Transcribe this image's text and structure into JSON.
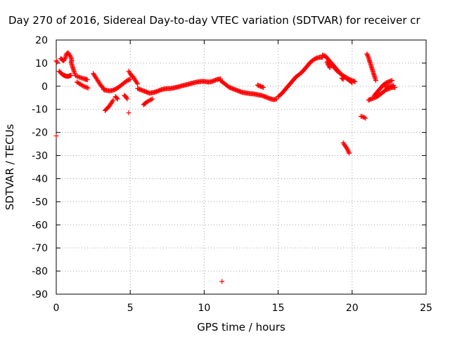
{
  "chart_data": {
    "type": "scatter",
    "title": "Day 270 of 2016, Sidereal Day-to-day VTEC variation (SDTVAR) for receiver cr",
    "xlabel": "GPS time / hours",
    "ylabel": "SDTVAR / TECUs",
    "xlim": [
      0,
      25
    ],
    "ylim": [
      -90,
      20
    ],
    "xticks": [
      0,
      5,
      10,
      15,
      20,
      25
    ],
    "yticks": [
      20,
      10,
      0,
      -10,
      -20,
      -30,
      -40,
      -50,
      -60,
      -70,
      -80,
      -90
    ],
    "grid": true,
    "marker": "+",
    "series_color": "#ff0000",
    "segments": [
      {
        "x": [
          0.0,
          0.05
        ],
        "y": [
          11,
          10.5
        ]
      },
      {
        "x": [
          0.0
        ],
        "y": [
          -21.5
        ]
      },
      {
        "x": [
          0.2,
          0.3,
          0.4,
          0.5,
          0.6,
          0.7,
          0.8,
          0.9,
          1.0
        ],
        "y": [
          6.5,
          5.8,
          5.2,
          4.8,
          4.5,
          4.3,
          4.3,
          4.5,
          4.7
        ]
      },
      {
        "x": [
          0.3,
          0.4,
          0.5,
          0.6,
          0.7,
          0.8,
          0.9,
          1.0,
          1.05
        ],
        "y": [
          12,
          11.5,
          11,
          12,
          14,
          14.5,
          13.5,
          12.5,
          11
        ]
      },
      {
        "x": [
          1.0,
          1.05,
          1.1,
          1.15,
          1.2,
          1.25
        ],
        "y": [
          10.5,
          9.5,
          8.5,
          7.5,
          6.5,
          5.5
        ]
      },
      {
        "x": [
          1.3,
          1.45,
          1.6,
          1.75,
          1.9,
          2.0,
          2.1
        ],
        "y": [
          4.6,
          4.2,
          3.8,
          3.5,
          3.2,
          3.0,
          2.8
        ]
      },
      {
        "x": [
          1.4,
          1.55,
          1.7,
          1.85,
          2.0,
          2.15
        ],
        "y": [
          1.8,
          1.2,
          0.6,
          0.0,
          -0.4,
          -0.8
        ]
      },
      {
        "x": [
          2.5,
          2.6,
          2.7,
          2.8,
          2.9,
          3.0,
          3.1,
          3.2
        ],
        "y": [
          5.5,
          4.5,
          3.5,
          2.5,
          1.5,
          0.5,
          -0.3,
          -1.0
        ]
      },
      {
        "x": [
          3.2,
          3.4,
          3.6,
          3.8,
          4.0,
          4.2,
          4.4,
          4.6,
          4.8,
          5.0
        ],
        "y": [
          -1.5,
          -1.8,
          -2.0,
          -1.8,
          -1.3,
          -0.5,
          0.5,
          1.5,
          2.5,
          3.0
        ]
      },
      {
        "x": [
          3.3,
          3.45,
          3.6,
          3.75,
          3.85
        ],
        "y": [
          -10.5,
          -9.5,
          -8.5,
          -7.0,
          -6.0
        ]
      },
      {
        "x": [
          4.0,
          4.15
        ],
        "y": [
          -4.5,
          -5.5
        ]
      },
      {
        "x": [
          4.6,
          4.7,
          4.8
        ],
        "y": [
          -4.0,
          -4.5,
          -5.5
        ]
      },
      {
        "x": [
          4.9
        ],
        "y": [
          -11.5
        ]
      },
      {
        "x": [
          4.9,
          5.0,
          5.1,
          5.2,
          5.3,
          5.4,
          5.5
        ],
        "y": [
          6.5,
          5.5,
          4.5,
          4.0,
          3.0,
          2.0,
          1.0
        ]
      },
      {
        "x": [
          5.5,
          5.7,
          5.9,
          6.1,
          6.3,
          6.5,
          6.7,
          6.9,
          7.1,
          7.3,
          7.5,
          7.7,
          7.9,
          8.1,
          8.3,
          8.5,
          8.7,
          8.9,
          9.1,
          9.3,
          9.5,
          9.7,
          9.9,
          10.1,
          10.3,
          10.5,
          10.7,
          10.9,
          11.1
        ],
        "y": [
          -1.0,
          -1.5,
          -2.0,
          -2.5,
          -3.0,
          -2.8,
          -2.5,
          -2.0,
          -1.5,
          -1.2,
          -1.0,
          -1.0,
          -0.8,
          -0.5,
          -0.2,
          0.2,
          0.5,
          0.8,
          1.2,
          1.5,
          1.8,
          2.0,
          2.1,
          2.0,
          1.8,
          2.0,
          2.5,
          3.0,
          3.2
        ]
      },
      {
        "x": [
          5.9,
          6.05,
          6.2,
          6.35,
          6.5
        ],
        "y": [
          -8.0,
          -7.2,
          -6.5,
          -6.0,
          -5.5
        ]
      },
      {
        "x": [
          11.1,
          11.3,
          11.5,
          11.7,
          11.9,
          12.1,
          12.3,
          12.5,
          12.7,
          12.9,
          13.1,
          13.3,
          13.5,
          13.7,
          13.9,
          14.1,
          14.3,
          14.5,
          14.7,
          14.9
        ],
        "y": [
          2.5,
          1.5,
          0.5,
          -0.5,
          -1.0,
          -1.5,
          -2.0,
          -2.5,
          -2.8,
          -3.0,
          -3.2,
          -3.3,
          -3.5,
          -3.8,
          -4.0,
          -4.5,
          -5.0,
          -5.5,
          -5.8,
          -5.5
        ]
      },
      {
        "x": [
          13.6,
          13.8,
          14.0
        ],
        "y": [
          0.5,
          0.0,
          -0.5
        ]
      },
      {
        "x": [
          11.2
        ],
        "y": [
          -84.5
        ]
      },
      {
        "x": [
          15.0,
          15.2,
          15.4,
          15.6,
          15.8,
          16.0,
          16.2,
          16.4,
          16.6,
          16.8,
          17.0,
          17.2,
          17.4,
          17.6,
          17.8,
          18.0
        ],
        "y": [
          -4.5,
          -3.5,
          -2.0,
          -0.5,
          1.0,
          2.5,
          4.0,
          5.0,
          6.0,
          7.5,
          9.0,
          10.5,
          11.5,
          12.2,
          12.5,
          12.5
        ]
      },
      {
        "x": [
          18.0,
          18.2,
          18.4,
          18.6,
          18.8,
          19.0,
          19.2,
          19.4,
          19.6,
          19.8,
          20.0
        ],
        "y": [
          13.5,
          13.0,
          11.5,
          10.0,
          8.5,
          7.0,
          5.5,
          4.5,
          3.5,
          2.5,
          1.5
        ]
      },
      {
        "x": [
          18.4,
          18.6,
          18.8,
          19.0,
          19.2,
          19.4,
          19.6,
          19.8,
          20.0,
          20.2
        ],
        "y": [
          11.0,
          9.5,
          8.0,
          6.5,
          5.5,
          4.5,
          3.8,
          3.0,
          2.5,
          2.0
        ]
      },
      {
        "x": [
          18.3,
          18.4,
          18.5
        ],
        "y": [
          10.5,
          9.0,
          8.0
        ]
      },
      {
        "x": [
          19.3,
          19.4
        ],
        "y": [
          3.5,
          3.0
        ]
      },
      {
        "x": [
          19.4,
          19.5,
          19.6,
          19.7,
          19.8
        ],
        "y": [
          -24.5,
          -25.5,
          -26.5,
          -27.5,
          -29.0
        ]
      },
      {
        "x": [
          20.6,
          20.75,
          20.9
        ],
        "y": [
          -13.0,
          -13.3,
          -13.8
        ]
      },
      {
        "x": [
          21.0,
          21.1,
          21.2,
          21.3,
          21.4,
          21.5,
          21.6
        ],
        "y": [
          14.0,
          12.5,
          10.5,
          8.5,
          6.5,
          4.5,
          2.5
        ]
      },
      {
        "x": [
          21.1,
          21.3,
          21.5,
          21.7,
          21.9,
          22.1,
          22.3,
          22.5,
          22.7,
          22.9
        ],
        "y": [
          -6.0,
          -5.5,
          -5.0,
          -4.5,
          -3.5,
          -2.5,
          -1.5,
          -1.0,
          -0.5,
          -0.5
        ]
      },
      {
        "x": [
          21.5,
          21.7,
          21.9,
          22.1,
          22.3,
          22.5,
          22.7
        ],
        "y": [
          -4.0,
          -2.5,
          -1.0,
          0.5,
          1.5,
          2.0,
          2.5
        ]
      },
      {
        "x": [
          22.2,
          22.4,
          22.6,
          22.8
        ],
        "y": [
          0.0,
          -0.2,
          0.0,
          0.3
        ]
      }
    ]
  }
}
